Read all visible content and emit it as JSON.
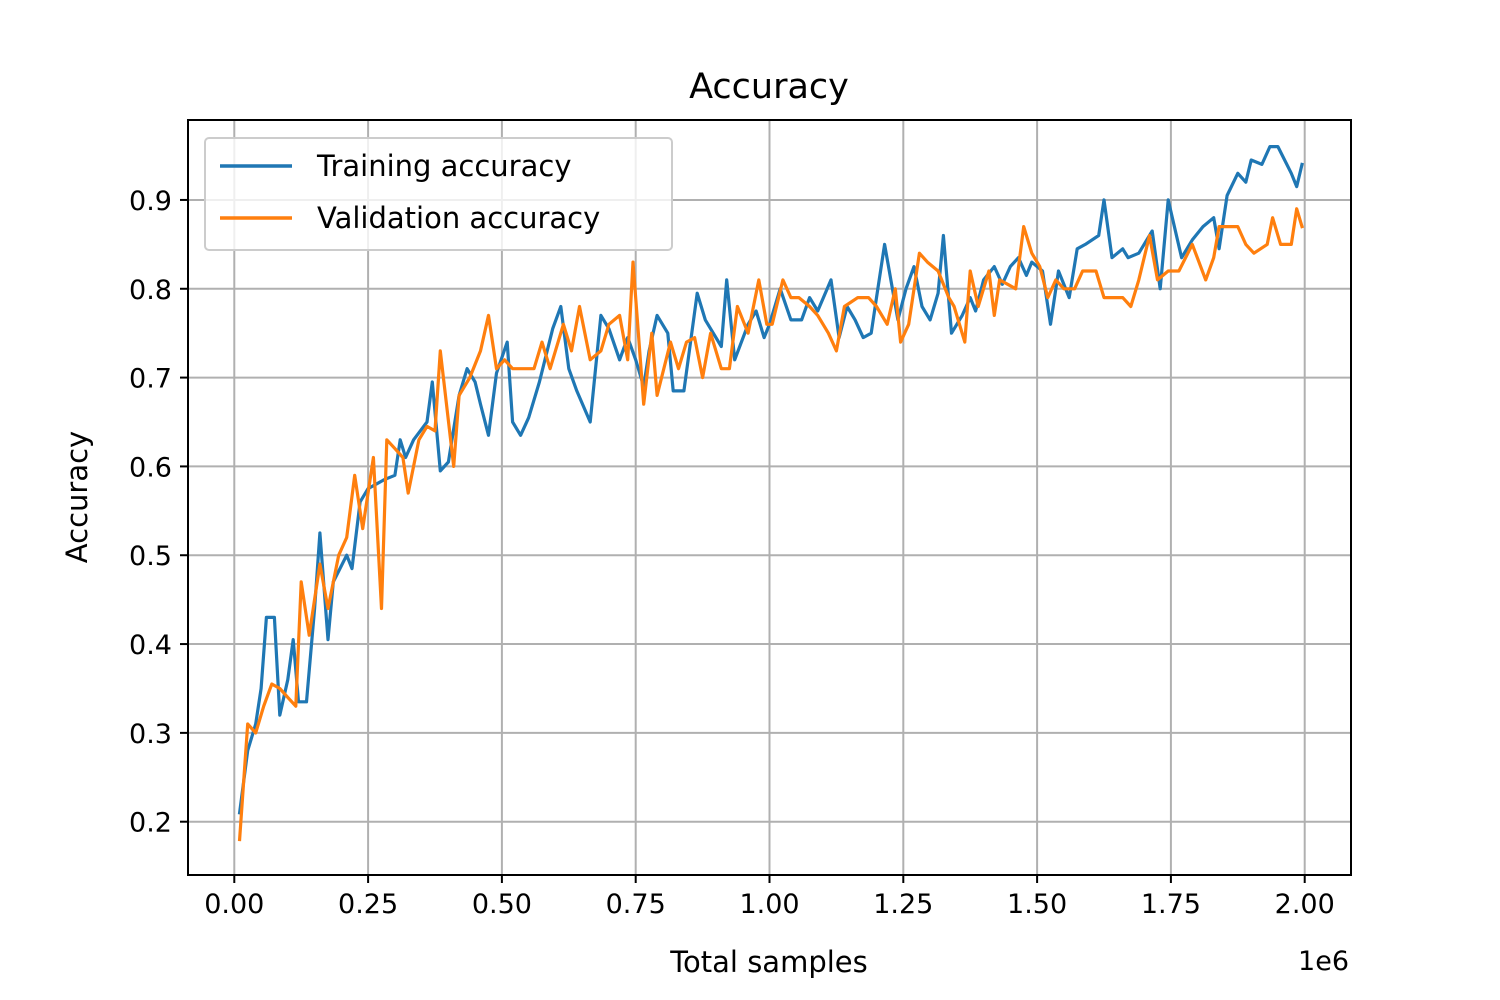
{
  "chart_data": {
    "type": "line",
    "title": "Accuracy",
    "xlabel": "Total samples",
    "ylabel": "Accuracy",
    "x_offset_label": "1e6",
    "xlim": [
      -0.0865,
      2.0865
    ],
    "ylim": [
      0.14,
      0.99
    ],
    "x_ticks": [
      0.0,
      0.25,
      0.5,
      0.75,
      1.0,
      1.25,
      1.5,
      1.75,
      2.0
    ],
    "x_tick_labels": [
      "0.00",
      "0.25",
      "0.50",
      "0.75",
      "1.00",
      "1.25",
      "1.50",
      "1.75",
      "2.00"
    ],
    "y_ticks": [
      0.2,
      0.3,
      0.4,
      0.5,
      0.6,
      0.7,
      0.8,
      0.9
    ],
    "y_tick_labels": [
      "0.2",
      "0.3",
      "0.4",
      "0.5",
      "0.6",
      "0.7",
      "0.8",
      "0.9"
    ],
    "grid": true,
    "legend_position": "top-left",
    "series": [
      {
        "name": "Training accuracy",
        "color": "#1f77b4",
        "points": [
          [
            0.01,
            0.21
          ],
          [
            0.025,
            0.28
          ],
          [
            0.04,
            0.31
          ],
          [
            0.05,
            0.35
          ],
          [
            0.06,
            0.43
          ],
          [
            0.075,
            0.43
          ],
          [
            0.085,
            0.32
          ],
          [
            0.1,
            0.36
          ],
          [
            0.11,
            0.405
          ],
          [
            0.12,
            0.335
          ],
          [
            0.135,
            0.335
          ],
          [
            0.15,
            0.44
          ],
          [
            0.16,
            0.525
          ],
          [
            0.175,
            0.405
          ],
          [
            0.185,
            0.47
          ],
          [
            0.21,
            0.5
          ],
          [
            0.22,
            0.485
          ],
          [
            0.235,
            0.56
          ],
          [
            0.25,
            0.575
          ],
          [
            0.265,
            0.58
          ],
          [
            0.28,
            0.585
          ],
          [
            0.3,
            0.59
          ],
          [
            0.31,
            0.63
          ],
          [
            0.32,
            0.61
          ],
          [
            0.335,
            0.63
          ],
          [
            0.36,
            0.65
          ],
          [
            0.37,
            0.695
          ],
          [
            0.385,
            0.595
          ],
          [
            0.4,
            0.605
          ],
          [
            0.42,
            0.68
          ],
          [
            0.435,
            0.71
          ],
          [
            0.45,
            0.695
          ],
          [
            0.46,
            0.67
          ],
          [
            0.475,
            0.635
          ],
          [
            0.49,
            0.705
          ],
          [
            0.51,
            0.74
          ],
          [
            0.52,
            0.65
          ],
          [
            0.535,
            0.635
          ],
          [
            0.55,
            0.655
          ],
          [
            0.57,
            0.695
          ],
          [
            0.595,
            0.755
          ],
          [
            0.61,
            0.78
          ],
          [
            0.625,
            0.71
          ],
          [
            0.64,
            0.685
          ],
          [
            0.665,
            0.65
          ],
          [
            0.685,
            0.77
          ],
          [
            0.7,
            0.755
          ],
          [
            0.72,
            0.72
          ],
          [
            0.735,
            0.745
          ],
          [
            0.75,
            0.72
          ],
          [
            0.765,
            0.69
          ],
          [
            0.775,
            0.73
          ],
          [
            0.79,
            0.77
          ],
          [
            0.81,
            0.75
          ],
          [
            0.82,
            0.685
          ],
          [
            0.84,
            0.685
          ],
          [
            0.865,
            0.795
          ],
          [
            0.88,
            0.765
          ],
          [
            0.895,
            0.75
          ],
          [
            0.91,
            0.735
          ],
          [
            0.92,
            0.81
          ],
          [
            0.935,
            0.72
          ],
          [
            0.96,
            0.76
          ],
          [
            0.975,
            0.775
          ],
          [
            0.99,
            0.745
          ],
          [
            1.0,
            0.76
          ],
          [
            1.02,
            0.8
          ],
          [
            1.04,
            0.765
          ],
          [
            1.06,
            0.765
          ],
          [
            1.075,
            0.79
          ],
          [
            1.09,
            0.775
          ],
          [
            1.115,
            0.81
          ],
          [
            1.13,
            0.745
          ],
          [
            1.145,
            0.78
          ],
          [
            1.16,
            0.765
          ],
          [
            1.175,
            0.745
          ],
          [
            1.19,
            0.75
          ],
          [
            1.2,
            0.79
          ],
          [
            1.215,
            0.85
          ],
          [
            1.24,
            0.765
          ],
          [
            1.255,
            0.8
          ],
          [
            1.27,
            0.825
          ],
          [
            1.285,
            0.78
          ],
          [
            1.3,
            0.765
          ],
          [
            1.315,
            0.795
          ],
          [
            1.325,
            0.86
          ],
          [
            1.34,
            0.75
          ],
          [
            1.36,
            0.77
          ],
          [
            1.375,
            0.79
          ],
          [
            1.385,
            0.775
          ],
          [
            1.4,
            0.81
          ],
          [
            1.42,
            0.825
          ],
          [
            1.435,
            0.805
          ],
          [
            1.45,
            0.825
          ],
          [
            1.465,
            0.835
          ],
          [
            1.48,
            0.815
          ],
          [
            1.49,
            0.83
          ],
          [
            1.51,
            0.82
          ],
          [
            1.525,
            0.76
          ],
          [
            1.54,
            0.82
          ],
          [
            1.56,
            0.79
          ],
          [
            1.575,
            0.845
          ],
          [
            1.59,
            0.85
          ],
          [
            1.615,
            0.86
          ],
          [
            1.625,
            0.9
          ],
          [
            1.64,
            0.835
          ],
          [
            1.66,
            0.845
          ],
          [
            1.67,
            0.835
          ],
          [
            1.69,
            0.84
          ],
          [
            1.715,
            0.865
          ],
          [
            1.73,
            0.8
          ],
          [
            1.745,
            0.9
          ],
          [
            1.77,
            0.835
          ],
          [
            1.79,
            0.855
          ],
          [
            1.81,
            0.87
          ],
          [
            1.83,
            0.88
          ],
          [
            1.84,
            0.845
          ],
          [
            1.855,
            0.905
          ],
          [
            1.875,
            0.93
          ],
          [
            1.89,
            0.92
          ],
          [
            1.9,
            0.945
          ],
          [
            1.92,
            0.94
          ],
          [
            1.935,
            0.96
          ],
          [
            1.95,
            0.96
          ],
          [
            1.975,
            0.93
          ],
          [
            1.985,
            0.915
          ],
          [
            1.995,
            0.94
          ]
        ]
      },
      {
        "name": "Validation accuracy",
        "color": "#ff7f0e",
        "points": [
          [
            0.01,
            0.18
          ],
          [
            0.025,
            0.31
          ],
          [
            0.04,
            0.3
          ],
          [
            0.055,
            0.33
          ],
          [
            0.07,
            0.355
          ],
          [
            0.085,
            0.35
          ],
          [
            0.1,
            0.34
          ],
          [
            0.115,
            0.33
          ],
          [
            0.125,
            0.47
          ],
          [
            0.14,
            0.41
          ],
          [
            0.16,
            0.49
          ],
          [
            0.175,
            0.44
          ],
          [
            0.195,
            0.5
          ],
          [
            0.21,
            0.52
          ],
          [
            0.225,
            0.59
          ],
          [
            0.24,
            0.53
          ],
          [
            0.26,
            0.61
          ],
          [
            0.275,
            0.44
          ],
          [
            0.285,
            0.63
          ],
          [
            0.3,
            0.62
          ],
          [
            0.315,
            0.61
          ],
          [
            0.325,
            0.57
          ],
          [
            0.345,
            0.63
          ],
          [
            0.36,
            0.645
          ],
          [
            0.375,
            0.64
          ],
          [
            0.385,
            0.73
          ],
          [
            0.41,
            0.6
          ],
          [
            0.42,
            0.68
          ],
          [
            0.44,
            0.7
          ],
          [
            0.46,
            0.73
          ],
          [
            0.475,
            0.77
          ],
          [
            0.49,
            0.71
          ],
          [
            0.505,
            0.72
          ],
          [
            0.52,
            0.71
          ],
          [
            0.54,
            0.71
          ],
          [
            0.56,
            0.71
          ],
          [
            0.575,
            0.74
          ],
          [
            0.59,
            0.71
          ],
          [
            0.615,
            0.76
          ],
          [
            0.63,
            0.73
          ],
          [
            0.645,
            0.78
          ],
          [
            0.665,
            0.72
          ],
          [
            0.685,
            0.73
          ],
          [
            0.7,
            0.76
          ],
          [
            0.72,
            0.77
          ],
          [
            0.735,
            0.72
          ],
          [
            0.745,
            0.83
          ],
          [
            0.765,
            0.67
          ],
          [
            0.78,
            0.75
          ],
          [
            0.79,
            0.68
          ],
          [
            0.815,
            0.74
          ],
          [
            0.83,
            0.71
          ],
          [
            0.845,
            0.74
          ],
          [
            0.86,
            0.745
          ],
          [
            0.875,
            0.7
          ],
          [
            0.89,
            0.75
          ],
          [
            0.91,
            0.71
          ],
          [
            0.925,
            0.71
          ],
          [
            0.94,
            0.78
          ],
          [
            0.96,
            0.75
          ],
          [
            0.98,
            0.81
          ],
          [
            0.995,
            0.76
          ],
          [
            1.005,
            0.76
          ],
          [
            1.025,
            0.81
          ],
          [
            1.04,
            0.79
          ],
          [
            1.055,
            0.79
          ],
          [
            1.075,
            0.78
          ],
          [
            1.09,
            0.77
          ],
          [
            1.11,
            0.75
          ],
          [
            1.125,
            0.73
          ],
          [
            1.14,
            0.78
          ],
          [
            1.165,
            0.79
          ],
          [
            1.185,
            0.79
          ],
          [
            1.2,
            0.78
          ],
          [
            1.22,
            0.76
          ],
          [
            1.235,
            0.8
          ],
          [
            1.245,
            0.74
          ],
          [
            1.26,
            0.76
          ],
          [
            1.28,
            0.84
          ],
          [
            1.295,
            0.83
          ],
          [
            1.315,
            0.82
          ],
          [
            1.335,
            0.79
          ],
          [
            1.345,
            0.78
          ],
          [
            1.365,
            0.74
          ],
          [
            1.375,
            0.82
          ],
          [
            1.39,
            0.78
          ],
          [
            1.41,
            0.82
          ],
          [
            1.42,
            0.77
          ],
          [
            1.43,
            0.81
          ],
          [
            1.445,
            0.805
          ],
          [
            1.46,
            0.8
          ],
          [
            1.475,
            0.87
          ],
          [
            1.49,
            0.84
          ],
          [
            1.505,
            0.825
          ],
          [
            1.52,
            0.79
          ],
          [
            1.535,
            0.81
          ],
          [
            1.55,
            0.8
          ],
          [
            1.57,
            0.8
          ],
          [
            1.585,
            0.82
          ],
          [
            1.61,
            0.82
          ],
          [
            1.625,
            0.79
          ],
          [
            1.64,
            0.79
          ],
          [
            1.66,
            0.79
          ],
          [
            1.675,
            0.78
          ],
          [
            1.69,
            0.81
          ],
          [
            1.71,
            0.86
          ],
          [
            1.725,
            0.81
          ],
          [
            1.745,
            0.82
          ],
          [
            1.765,
            0.82
          ],
          [
            1.79,
            0.85
          ],
          [
            1.815,
            0.81
          ],
          [
            1.83,
            0.835
          ],
          [
            1.84,
            0.87
          ],
          [
            1.86,
            0.87
          ],
          [
            1.875,
            0.87
          ],
          [
            1.89,
            0.85
          ],
          [
            1.905,
            0.84
          ],
          [
            1.93,
            0.85
          ],
          [
            1.94,
            0.88
          ],
          [
            1.955,
            0.85
          ],
          [
            1.965,
            0.85
          ],
          [
            1.975,
            0.85
          ],
          [
            1.985,
            0.89
          ],
          [
            1.995,
            0.87
          ]
        ]
      }
    ]
  }
}
